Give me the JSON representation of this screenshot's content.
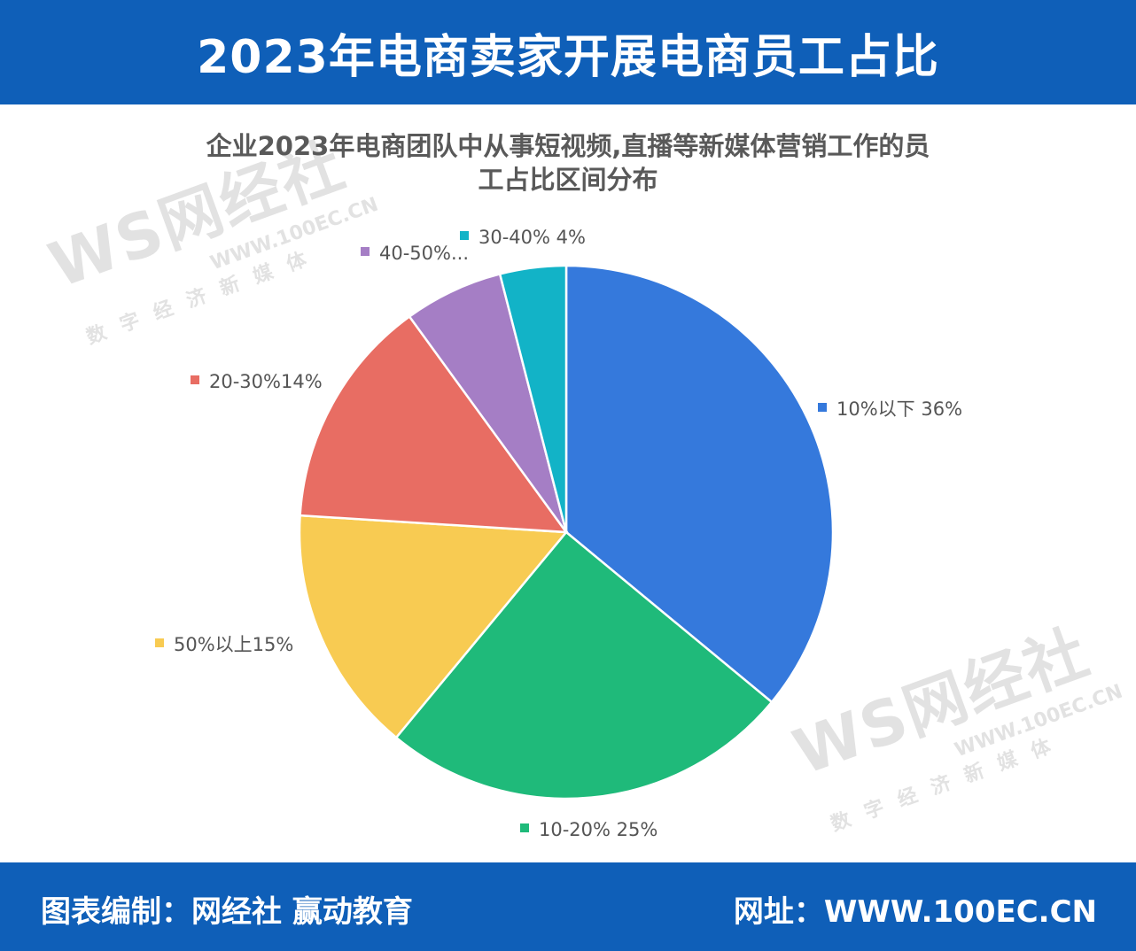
{
  "header": {
    "title": "2023年电商卖家开展电商员工占比"
  },
  "watermark": {
    "brand": "WS网经社",
    "url": "WWW.100EC.CN",
    "sub": "数字经济新媒体"
  },
  "chart_data": {
    "type": "pie",
    "title_line1": "企业2023年电商团队中从事短视频,直播等新媒体营销工作的员",
    "title_line2": "工占比区间分布",
    "slices": [
      {
        "label": "10%以下 36%",
        "value": 36,
        "color": "#3579dc"
      },
      {
        "label": "10-20% 25%",
        "value": 25,
        "color": "#1fba7a"
      },
      {
        "label": "50%以上15%",
        "value": 15,
        "color": "#f8cb52"
      },
      {
        "label": "20-30%14%",
        "value": 14,
        "color": "#e86d63"
      },
      {
        "label": "40-50%...",
        "value": 6,
        "color": "#a57ec5"
      },
      {
        "label": "30-40% 4%",
        "value": 4,
        "color": "#12b3c7"
      }
    ]
  },
  "footer": {
    "left": "图表编制：网经社 赢动教育",
    "right": "网址：WWW.100EC.CN"
  }
}
